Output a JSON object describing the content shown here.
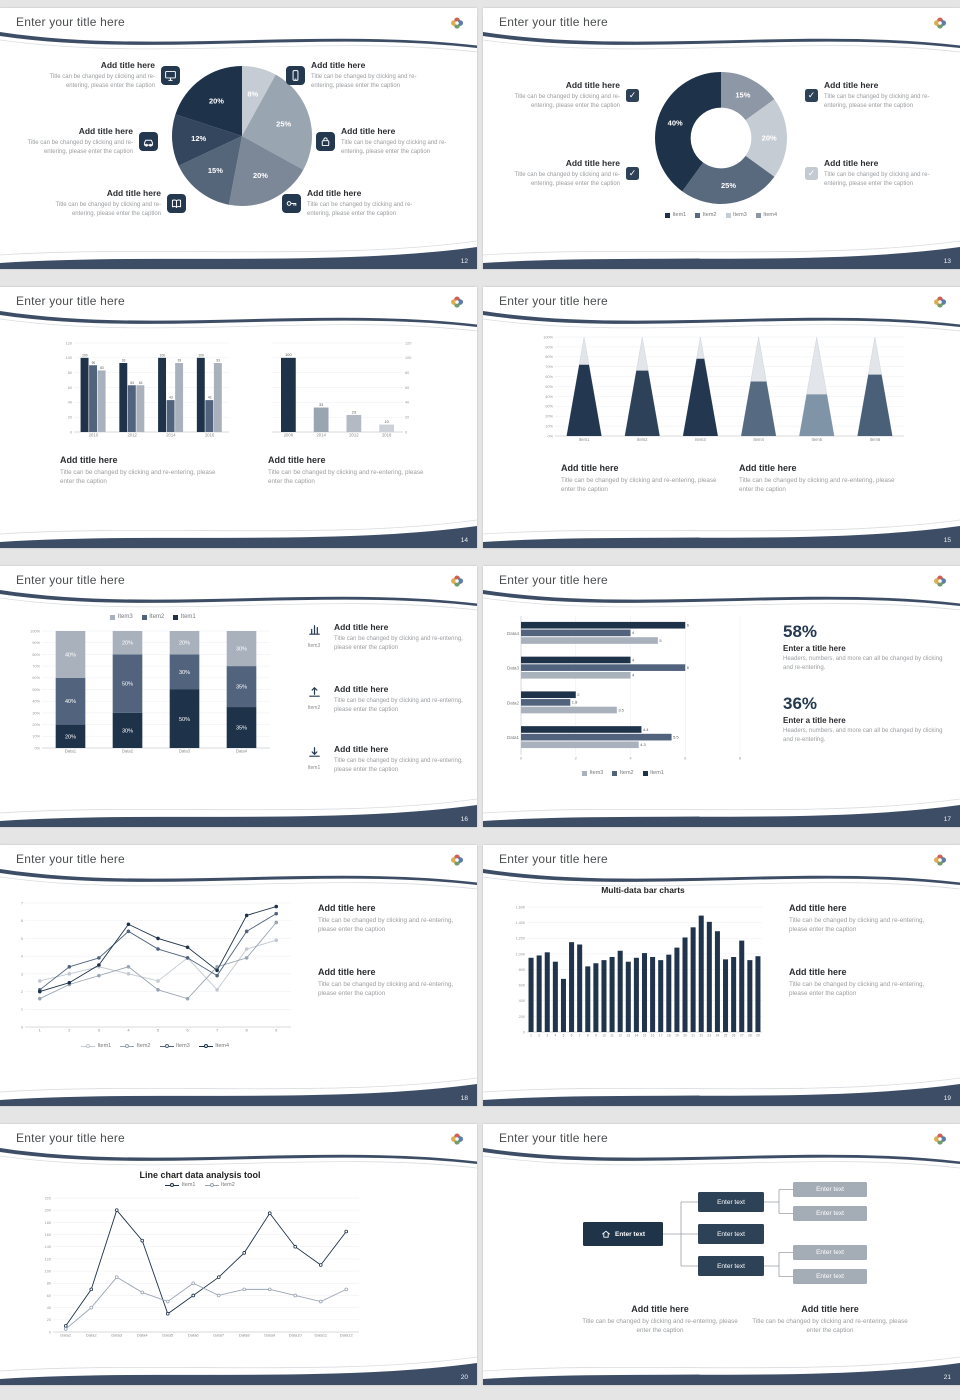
{
  "canvas": {
    "bg": "#e5e5e5",
    "accent": "#3d4d66",
    "slide_bg": "#ffffff"
  },
  "slides": [
    {
      "page": "12",
      "title": "Enter your title here",
      "blocks": [
        {
          "icon": "monitor",
          "title": "Add title here",
          "caption": "Title can be changed by clicking and re-entering, please enter the caption"
        },
        {
          "icon": "smartphone",
          "title": "Add title here",
          "caption": "Title can be changed by clicking and re-entering, please enter the caption"
        },
        {
          "icon": "car",
          "title": "Add title here",
          "caption": "Title can be changed by clicking and re-entering, please enter the caption"
        },
        {
          "icon": "lock",
          "title": "Add title here",
          "caption": "Title can be changed by clicking and re-entering, please enter the caption"
        },
        {
          "icon": "book",
          "title": "Add title here",
          "caption": "Title can be changed by clicking and re-entering, please enter the caption"
        },
        {
          "icon": "key",
          "title": "Add title here",
          "caption": "Title can be changed by clicking and re-entering, please enter the caption"
        }
      ],
      "chart_data": {
        "type": "pie",
        "slices": [
          {
            "label": "8%",
            "value": 8,
            "color": "#c6ccd4"
          },
          {
            "label": "25%",
            "value": 25,
            "color": "#9aa5b2"
          },
          {
            "label": "20%",
            "value": 20,
            "color": "#7c8898"
          },
          {
            "label": "15%",
            "value": 15,
            "color": "#55657a"
          },
          {
            "label": "12%",
            "value": 12,
            "color": "#34465e"
          },
          {
            "label": "20%",
            "value": 20,
            "color": "#1e3249"
          }
        ]
      }
    },
    {
      "page": "13",
      "title": "Enter your title here",
      "blocks": [
        {
          "title": "Add title here",
          "caption": "Title can be changed by clicking and re-entering, please enter the caption",
          "checkbox_color": "#2e4257"
        },
        {
          "title": "Add title here",
          "caption": "Title can be changed by clicking and re-entering, please enter the caption",
          "checkbox_color": "#2e4257"
        },
        {
          "title": "Add title here",
          "caption": "Title can be changed by clicking and re-entering, please enter the caption",
          "checkbox_color": "#2e4257"
        },
        {
          "title": "Add title here",
          "caption": "Title can be changed by clicking and re-entering, please enter the caption",
          "checkbox_color": "#c4cad2"
        }
      ],
      "chart_data": {
        "type": "donut",
        "slices": [
          {
            "label": "15%",
            "value": 15,
            "color": "#8d97a5"
          },
          {
            "label": "20%",
            "value": 20,
            "color": "#c6ccd4"
          },
          {
            "label": "25%",
            "value": 25,
            "color": "#5a6a7e"
          },
          {
            "label": "40%",
            "value": 40,
            "color": "#1e3249"
          }
        ],
        "legend": [
          {
            "label": "Item1",
            "color": "#1e3249"
          },
          {
            "label": "Item2",
            "color": "#5a6a7e"
          },
          {
            "label": "Item3",
            "color": "#c6ccd4"
          },
          {
            "label": "Item4",
            "color": "#8d97a5"
          }
        ]
      }
    },
    {
      "page": "14",
      "title": "Enter your title here",
      "blocks": [
        {
          "title": "Add title here",
          "caption": "Title can be changed by clicking and re-entering, please enter the caption"
        },
        {
          "title": "Add title here",
          "caption": "Title can be changed by clicking and re-entering, please enter the caption"
        }
      ],
      "chart_data": [
        {
          "type": "grouped_bar",
          "categories": [
            "2010",
            "2012",
            "2014",
            "2016"
          ],
          "series": [
            {
              "name": "Item1",
              "color": "#1e3249",
              "values": [
                100,
                93,
                100,
                100
              ]
            },
            {
              "name": "Item2",
              "color": "#51637d",
              "values": [
                90,
                63,
                43,
                43
              ]
            },
            {
              "name": "Item3",
              "color": "#a9b1bc",
              "values": [
                83,
                63,
                93,
                93
              ]
            }
          ],
          "ylim": [
            0,
            120
          ],
          "yticks": [
            0,
            20,
            40,
            60,
            80,
            100,
            120
          ],
          "value_labels": true,
          "yaxis": "left"
        },
        {
          "type": "bar",
          "categories": [
            "2008",
            "2014",
            "2012",
            "2018"
          ],
          "values": [
            100,
            33,
            23,
            10
          ],
          "colors": [
            "#1e3249",
            "#9aa5b2",
            "#b3bac4",
            "#cdd2d8"
          ],
          "ylim": [
            0,
            120
          ],
          "yticks": [
            0,
            20,
            40,
            60,
            80,
            100,
            120
          ],
          "value_labels": true,
          "yaxis": "right",
          "bar_frac": 0.45
        }
      ]
    },
    {
      "page": "15",
      "title": "Enter your title here",
      "blocks": [
        {
          "title": "Add title here",
          "caption": "Title can be changed by clicking and re-entering, please enter the caption"
        },
        {
          "title": "Add title here",
          "caption": "Title can be changed by clicking and re-entering, please enter the caption"
        }
      ],
      "chart_data": {
        "type": "cone",
        "yticks": [
          0,
          10,
          20,
          30,
          40,
          50,
          60,
          70,
          80,
          90,
          100
        ],
        "items": [
          {
            "label": "Item1",
            "value": 72,
            "color": "#243750"
          },
          {
            "label": "Item2",
            "value": 66,
            "color": "#2d4259"
          },
          {
            "label": "Item3",
            "value": 78,
            "color": "#243750"
          },
          {
            "label": "Item4",
            "value": 55,
            "color": "#566b82"
          },
          {
            "label": "Item5",
            "value": 42,
            "color": "#8094a8"
          },
          {
            "label": "Item6",
            "value": 62,
            "color": "#4a5f78"
          }
        ]
      }
    },
    {
      "page": "16",
      "title": "Enter your title here",
      "legend": [
        {
          "label": "Item3",
          "color": "#a9b1bc"
        },
        {
          "label": "Item2",
          "color": "#51637d"
        },
        {
          "label": "Item1",
          "color": "#1e3249"
        }
      ],
      "rows": [
        {
          "icon": "chart",
          "icon_label": "Item3",
          "title": "Add title here",
          "caption": "Title can be changed by clicking and re-entering, please enter the caption"
        },
        {
          "icon": "upload",
          "icon_label": "Item2",
          "title": "Add title here",
          "caption": "Title can be changed by clicking and re-entering, please enter the caption"
        },
        {
          "icon": "download",
          "icon_label": "Item1",
          "title": "Add title here",
          "caption": "Title can be changed by clicking and re-entering, please enter the caption"
        }
      ],
      "chart_data": {
        "type": "stacked_bar",
        "categories": [
          "Data1",
          "Data2",
          "Data3",
          "Data4"
        ],
        "series": [
          {
            "name": "Item1",
            "color": "#1e3249",
            "values": [
              20,
              30,
              50,
              35
            ]
          },
          {
            "name": "Item2",
            "color": "#51637d",
            "values": [
              40,
              50,
              30,
              35
            ]
          },
          {
            "name": "Item3",
            "color": "#a9b1bc",
            "values": [
              40,
              20,
              20,
              30
            ]
          }
        ]
      }
    },
    {
      "page": "17",
      "title": "Enter your title here",
      "stats": [
        {
          "value": "58%",
          "title": "Enter a title here",
          "caption": "Headers, numbers, and more can all be changed by clicking and re-entering."
        },
        {
          "value": "36%",
          "title": "Enter a title here",
          "caption": "Headers, numbers, and more can all be changed by clicking and re-entering."
        }
      ],
      "chart_data": {
        "type": "hbar",
        "categories": [
          "Data4",
          "Data3",
          "Data2",
          "Data1"
        ],
        "series": [
          {
            "name": "Item1",
            "color": "#1e3249",
            "values": [
              6,
              4,
              2,
              4.4
            ]
          },
          {
            "name": "Item2",
            "color": "#51637d",
            "values": [
              4,
              6,
              1.8,
              5.5
            ]
          },
          {
            "name": "Item3",
            "color": "#a9b1bc",
            "values": [
              5,
              4,
              3.5,
              4.3
            ]
          }
        ],
        "xlim": [
          0,
          8
        ],
        "xticks": [
          0,
          2,
          4,
          6,
          8
        ],
        "legend": [
          {
            "label": "Item3",
            "color": "#a9b1bc"
          },
          {
            "label": "Item2",
            "color": "#51637d"
          },
          {
            "label": "Item1",
            "color": "#1e3249"
          }
        ]
      }
    },
    {
      "page": "18",
      "title": "Enter your title here",
      "blocks": [
        {
          "title": "Add title here",
          "caption": "Title can be changed by clicking and re-entering, please enter the caption"
        },
        {
          "title": "Add title here",
          "caption": "Title can be changed by clicking and re-entering, please enter the caption"
        }
      ],
      "chart_data": {
        "type": "line",
        "categories": [
          "1",
          "2",
          "3",
          "4",
          "5",
          "6",
          "7",
          "8",
          "9"
        ],
        "ylim": [
          0,
          7
        ],
        "yticks": [
          0,
          1,
          2,
          3,
          4,
          5,
          6,
          7
        ],
        "marker": "filled",
        "series": [
          {
            "name": "Item1",
            "color": "#c3c9d2",
            "values": [
              2.6,
              3.0,
              3.4,
              3.0,
              2.6,
              3.9,
              2.1,
              4.4,
              4.9
            ]
          },
          {
            "name": "Item2",
            "color": "#9aa5b2",
            "values": [
              1.6,
              2.4,
              2.9,
              3.4,
              2.1,
              1.6,
              3.4,
              3.9,
              5.9
            ]
          },
          {
            "name": "Item3",
            "color": "#51637d",
            "values": [
              2.1,
              3.4,
              3.9,
              5.4,
              4.4,
              3.9,
              2.9,
              5.4,
              6.4
            ]
          },
          {
            "name": "Item4",
            "color": "#1e3249",
            "values": [
              2.0,
              2.5,
              3.5,
              5.8,
              5.0,
              4.5,
              3.2,
              6.3,
              6.8
            ]
          }
        ],
        "legend": [
          {
            "label": "Item1",
            "color": "#c3c9d2"
          },
          {
            "label": "Item2",
            "color": "#9aa5b2"
          },
          {
            "label": "Item3",
            "color": "#51637d"
          },
          {
            "label": "Item4",
            "color": "#1e3249"
          }
        ]
      }
    },
    {
      "page": "19",
      "title": "Enter your title here",
      "chart_title": "Multi-data bar charts",
      "blocks": [
        {
          "title": "Add title here",
          "caption": "Title can be changed by clicking and re-entering, please enter the caption"
        },
        {
          "title": "Add title here",
          "caption": "Title can be changed by clicking and re-entering, please enter the caption"
        }
      ],
      "chart_data": {
        "type": "bar",
        "color": "#20344b",
        "categories": [
          "1",
          "2",
          "3",
          "4",
          "5",
          "6",
          "7",
          "8",
          "9",
          "10",
          "11",
          "12",
          "13",
          "14",
          "15",
          "16",
          "17",
          "18",
          "19",
          "20",
          "21",
          "22",
          "23",
          "24",
          "25",
          "26",
          "27",
          "28",
          "29"
        ],
        "values": [
          950,
          980,
          1020,
          900,
          680,
          1150,
          1120,
          840,
          880,
          920,
          960,
          1040,
          900,
          950,
          1010,
          960,
          920,
          990,
          1080,
          1210,
          1340,
          1490,
          1410,
          1290,
          930,
          960,
          1170,
          920,
          970
        ],
        "ylim": [
          0,
          1600
        ],
        "yticks": [
          0,
          200,
          400,
          600,
          800,
          1000,
          1200,
          1400,
          1600
        ],
        "ytick_labels": [
          "0",
          "200",
          "400",
          "600",
          "800",
          "1,000",
          "1,200",
          "1,400",
          "1,600"
        ],
        "yaxis": "left",
        "xlabel_fs": 3.2,
        "bar_frac": 0.62
      }
    },
    {
      "page": "20",
      "title": "Enter your title here",
      "chart_title": "Line chart data analysis tool",
      "chart_data": {
        "type": "line",
        "categories": [
          "Data1",
          "Data2",
          "Data3",
          "Data4",
          "Data5",
          "Data6",
          "Data7",
          "Data8",
          "Data9",
          "Data10",
          "Data11",
          "Data12"
        ],
        "ylim": [
          0,
          220
        ],
        "yticks": [
          0,
          20,
          40,
          60,
          80,
          100,
          120,
          140,
          160,
          180,
          200,
          220
        ],
        "marker": "open",
        "margin_left": 18,
        "series": [
          {
            "name": "Item1",
            "color": "#1e3249",
            "values": [
              10,
              70,
              200,
              150,
              30,
              60,
              90,
              130,
              195,
              140,
              110,
              165
            ]
          },
          {
            "name": "Item2",
            "color": "#9aa5b2",
            "values": [
              5,
              40,
              90,
              65,
              50,
              80,
              60,
              70,
              70,
              60,
              50,
              70
            ]
          }
        ],
        "legend": [
          {
            "label": "Item1",
            "color": "#1e3249"
          },
          {
            "label": "Item2",
            "color": "#9aa5b2"
          }
        ]
      }
    },
    {
      "page": "21",
      "title": "Enter your title here",
      "diagram": {
        "root": {
          "label": "Enter text"
        },
        "mid": [
          {
            "label": "Enter text"
          },
          {
            "label": "Enter text"
          },
          {
            "label": "Enter text"
          }
        ],
        "leaf": [
          {
            "label": "Enter text"
          },
          {
            "label": "Enter text"
          },
          {
            "label": "Enter text"
          },
          {
            "label": "Enter text"
          }
        ]
      },
      "blocks": [
        {
          "title": "Add title here",
          "caption": "Title can be changed by clicking and re-entering, please enter the caption"
        },
        {
          "title": "Add title here",
          "caption": "Title can be changed by clicking and re-entering, please enter the caption"
        }
      ]
    }
  ]
}
